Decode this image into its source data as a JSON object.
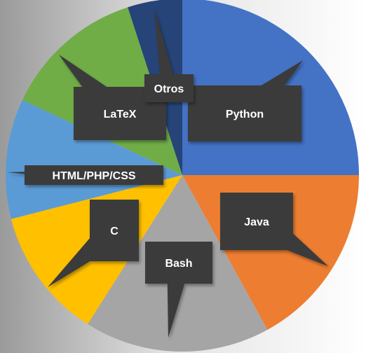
{
  "chart_data": {
    "type": "pie",
    "categories": [
      "Python",
      "Java",
      "Bash",
      "C",
      "HTML/PHP/CSS",
      "LaTeX",
      "Otros"
    ],
    "values": [
      25,
      17,
      17,
      12,
      11,
      13,
      5
    ],
    "colors": [
      "#4472c4",
      "#ed7d31",
      "#a5a5a5",
      "#ffc000",
      "#5b9bd5",
      "#70ad47",
      "#264478"
    ],
    "title": "",
    "legend": "none",
    "data_labels": "category names in dark callout boxes"
  }
}
